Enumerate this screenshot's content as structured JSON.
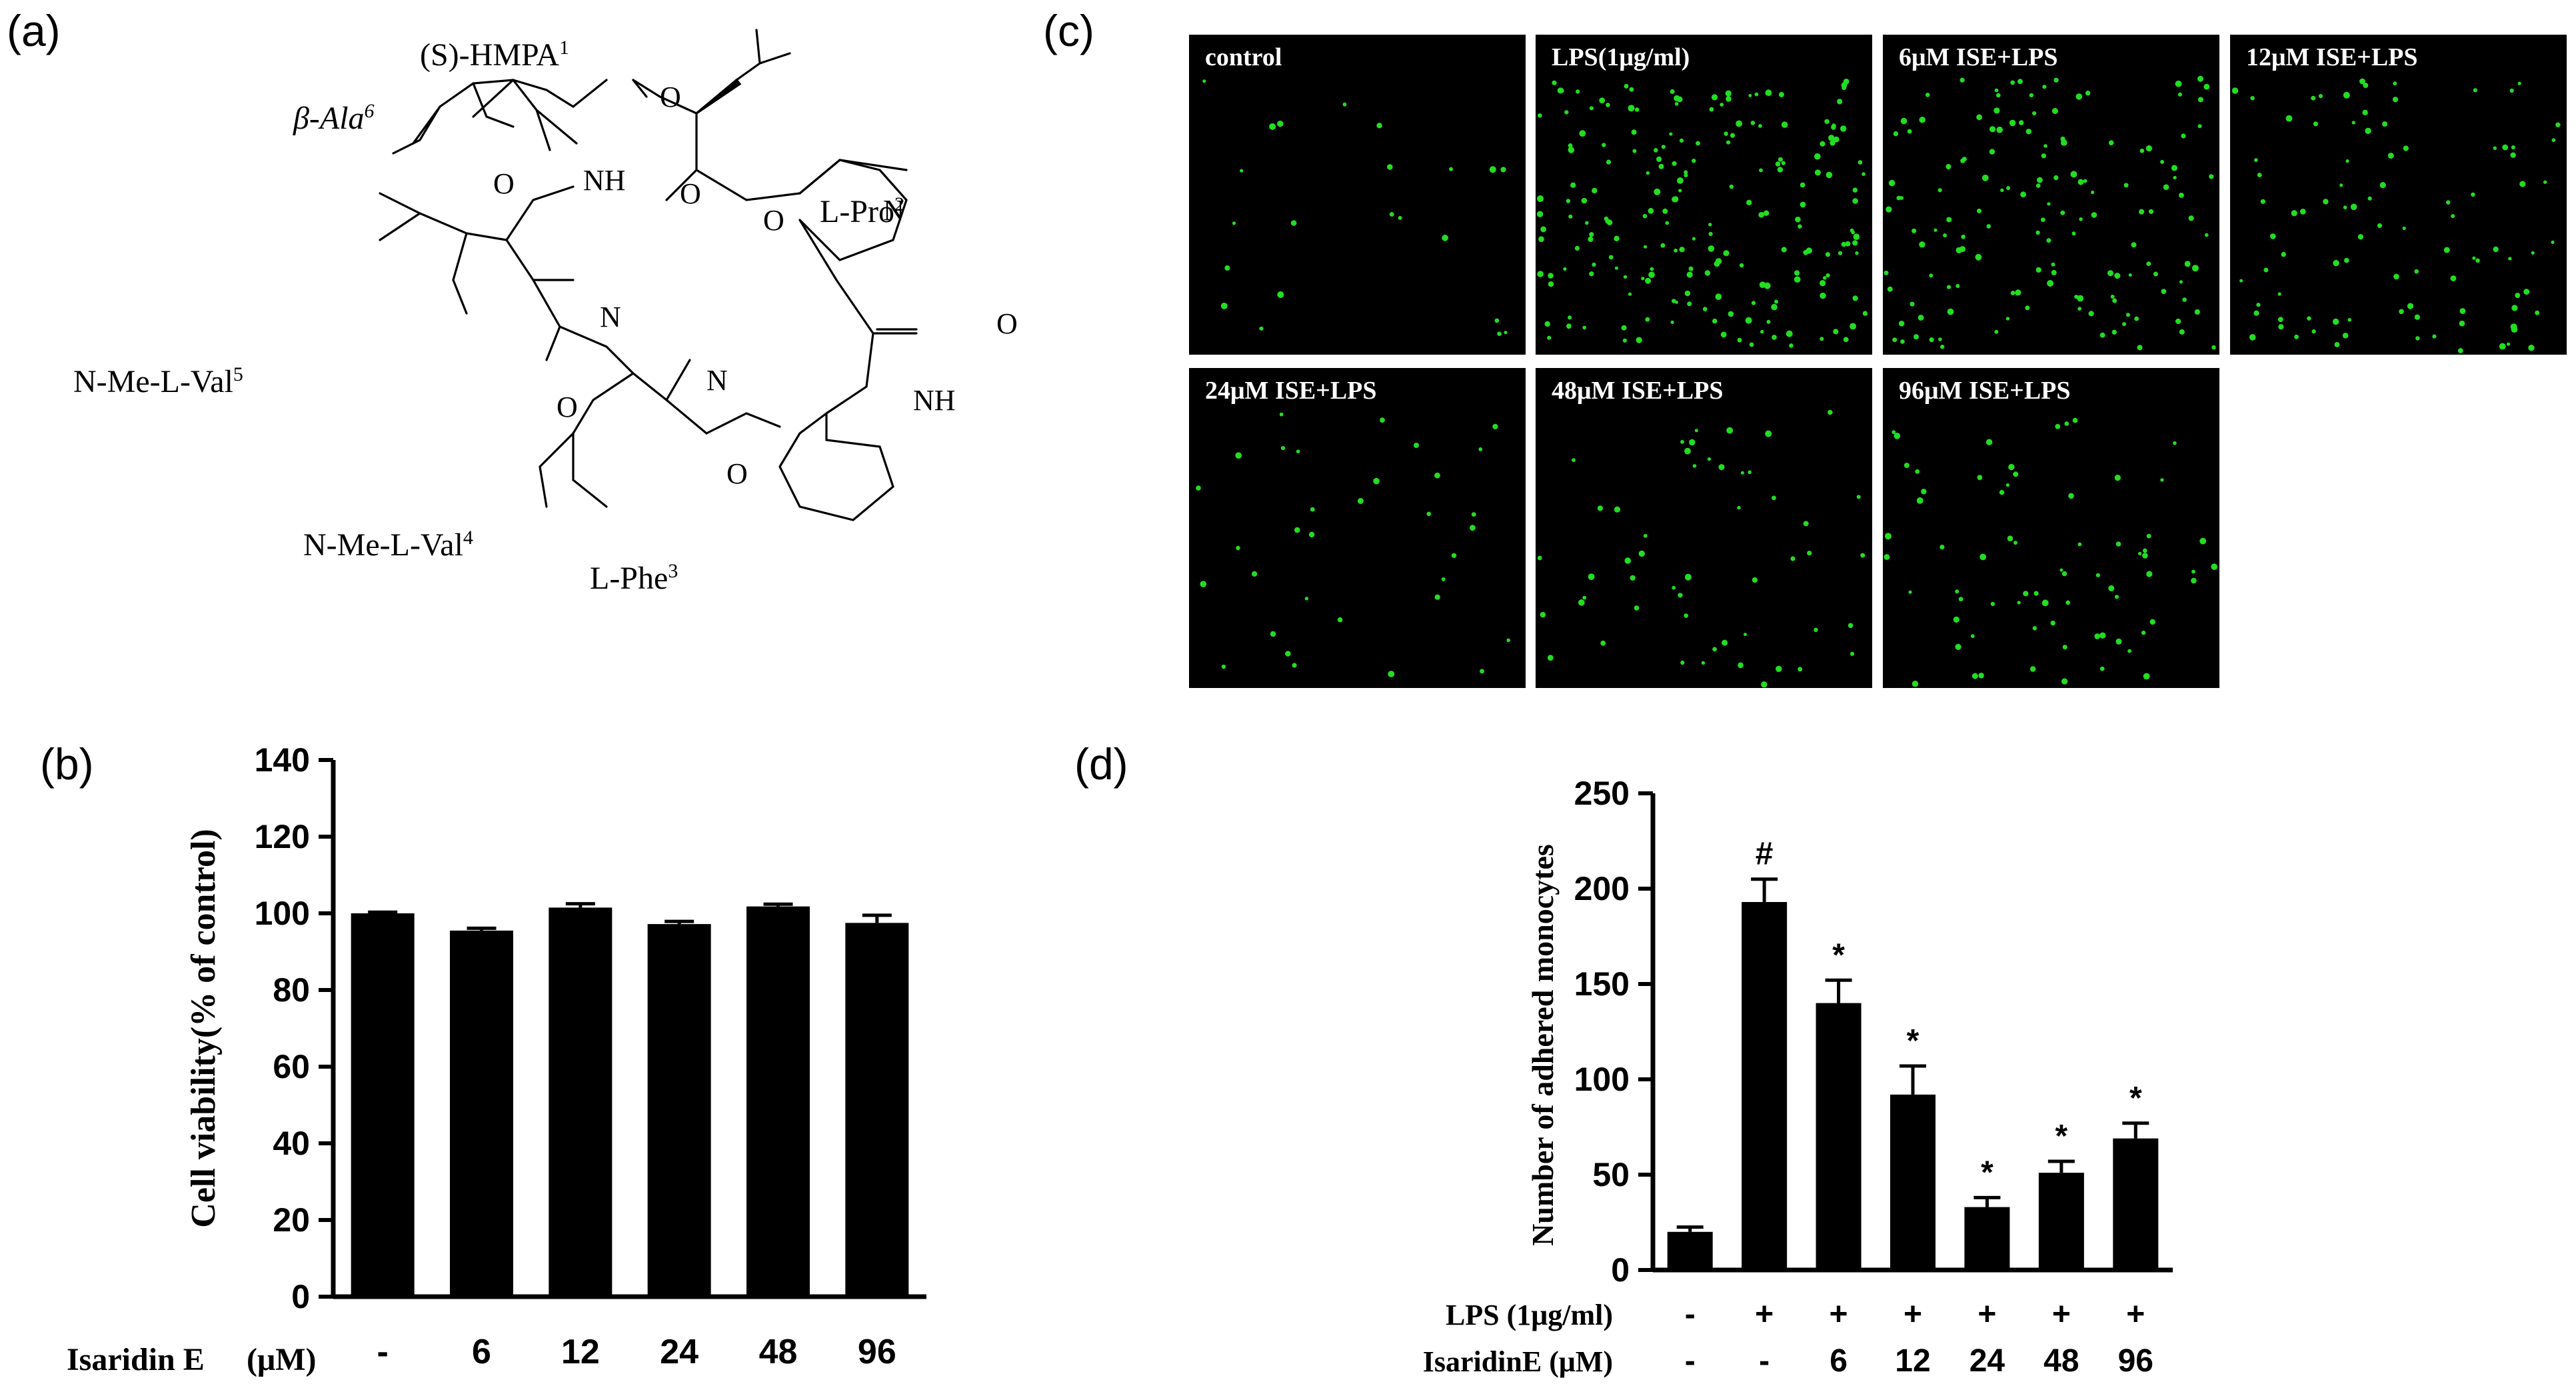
{
  "panels": {
    "a": "(a)",
    "b": "(b)",
    "c": "(c)",
    "d": "(d)"
  },
  "structure": {
    "residues": {
      "hmpa": "(S)-HMPA",
      "hmpa_sup": "1",
      "bala": "β-Ala",
      "bala_sup": "6",
      "pro": "L-Pro",
      "pro_sup": "2",
      "val5": "N-Me-L-Val",
      "val5_sup": "5",
      "val4": "N-Me-L-Val",
      "val4_sup": "4",
      "phe": "L-Phe",
      "phe_sup": "3"
    },
    "atoms": {
      "o_ester": "O",
      "o_bala": "O",
      "o_hmpa": "O",
      "o_val5": "O",
      "o_val4": "O",
      "o_phe": "O",
      "o_pro": "O",
      "nh_bala": "NH",
      "nh_phe": "NH",
      "n_pro": "N",
      "n_val5": "N",
      "n_val4": "N"
    }
  },
  "microscopy": {
    "dot_color": "#22dd22",
    "images": [
      {
        "label": "control",
        "density": 22
      },
      {
        "label": "LPS(1μg/ml)",
        "density": 195
      },
      {
        "label": "6μM ISE+LPS",
        "density": 140
      },
      {
        "label": "12μM ISE+LPS",
        "density": 92
      },
      {
        "label": "24μM ISE+LPS",
        "density": 33
      },
      {
        "label": "48μM ISE+LPS",
        "density": 51
      },
      {
        "label": "96μM ISE+LPS",
        "density": 69
      }
    ]
  },
  "chart_data": [
    {
      "type": "bar",
      "panel": "b",
      "ylabel": "Cell viability(% of control)",
      "xlabel": "Isaridin E",
      "xunit": "(μM)",
      "categories": [
        "-",
        "6",
        "12",
        "24",
        "48",
        "96"
      ],
      "values": [
        100,
        95.5,
        101.5,
        97.2,
        101.8,
        97.5
      ],
      "errors": [
        0.3,
        0.6,
        1.0,
        0.7,
        0.6,
        2.0
      ],
      "ylim": [
        0,
        140
      ],
      "yticks": [
        0,
        20,
        40,
        60,
        80,
        100,
        120,
        140
      ],
      "grid": false
    },
    {
      "type": "bar",
      "panel": "d",
      "ylabel": "Number of adhered monocytes",
      "row_labels": [
        "LPS  (1μg/ml)",
        "IsaridinE (μM)"
      ],
      "lps_row": [
        "-",
        "+",
        "+",
        "+",
        "+",
        "+",
        "+"
      ],
      "ise_row": [
        "-",
        "-",
        "6",
        "12",
        "24",
        "48",
        "96"
      ],
      "values": [
        20,
        193,
        140,
        92,
        33,
        51,
        69
      ],
      "errors": [
        2.5,
        12,
        12,
        15,
        5,
        6,
        8
      ],
      "annotations": [
        "",
        "#",
        "*",
        "*",
        "*",
        "*",
        "*"
      ],
      "ylim": [
        0,
        250
      ],
      "yticks": [
        0,
        50,
        100,
        150,
        200,
        250
      ],
      "grid": false
    }
  ]
}
